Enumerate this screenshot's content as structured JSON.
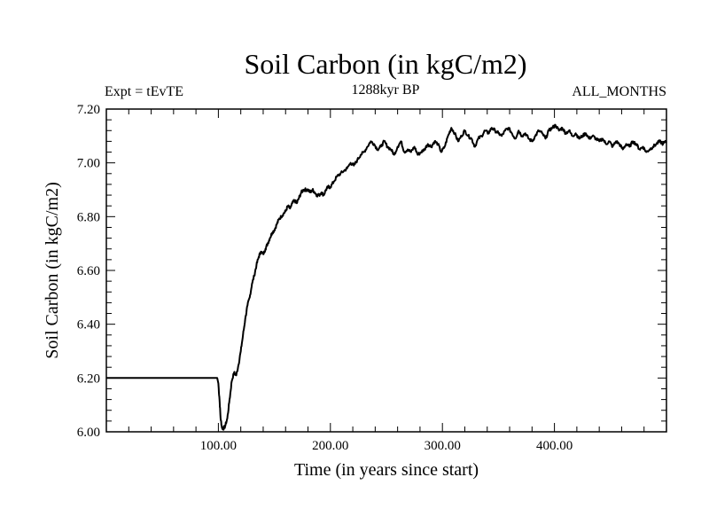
{
  "chart_data": {
    "type": "line",
    "title": "Soil Carbon (in kgC/m2)",
    "subtitle_left": "Expt = tEvTE",
    "subtitle_center": "1288kyr BP",
    "subtitle_right": "ALL_MONTHS",
    "xlabel": "Time (in years since start)",
    "ylabel": "Soil Carbon (in kgC/m2)",
    "xlim": [
      0,
      500
    ],
    "ylim": [
      6.0,
      7.2
    ],
    "x_ticks": [
      100,
      200,
      300,
      400
    ],
    "x_tick_labels": [
      "100.00",
      "200.00",
      "300.00",
      "400.00"
    ],
    "y_ticks": [
      6.0,
      6.2,
      6.4,
      6.6,
      6.8,
      7.0,
      7.2
    ],
    "y_tick_labels": [
      "6.00",
      "6.20",
      "6.40",
      "6.60",
      "6.80",
      "7.00",
      "7.20"
    ],
    "series": [
      {
        "name": "Soil Carbon",
        "x": [
          0,
          99,
          100,
          101,
          102,
          103,
          104,
          106,
          108,
          110,
          112,
          114,
          116,
          118,
          120,
          122,
          124,
          126,
          128,
          130,
          132,
          134,
          136,
          138,
          140,
          142,
          144,
          146,
          148,
          150,
          152,
          154,
          156,
          158,
          160,
          162,
          164,
          166,
          168,
          170,
          172,
          174,
          176,
          178,
          180,
          182,
          184,
          186,
          188,
          190,
          192,
          194,
          196,
          198,
          200,
          203,
          206,
          209,
          212,
          215,
          218,
          221,
          224,
          227,
          230,
          233,
          236,
          239,
          242,
          245,
          248,
          251,
          254,
          257,
          260,
          263,
          266,
          269,
          272,
          275,
          278,
          281,
          284,
          287,
          290,
          293,
          296,
          299,
          302,
          305,
          308,
          311,
          314,
          317,
          320,
          323,
          326,
          329,
          332,
          335,
          338,
          341,
          344,
          347,
          350,
          353,
          356,
          359,
          362,
          365,
          368,
          371,
          374,
          377,
          380,
          383,
          386,
          389,
          392,
          395,
          398,
          401,
          404,
          407,
          410,
          413,
          416,
          419,
          422,
          425,
          428,
          431,
          434,
          437,
          440,
          443,
          446,
          449,
          452,
          455,
          458,
          461,
          464,
          467,
          470,
          473,
          476,
          479,
          482,
          485,
          488,
          491,
          494,
          497,
          500
        ],
        "values": [
          6.2,
          6.2,
          6.18,
          6.12,
          6.05,
          6.02,
          6.01,
          6.02,
          6.05,
          6.12,
          6.19,
          6.22,
          6.21,
          6.25,
          6.3,
          6.36,
          6.42,
          6.47,
          6.5,
          6.55,
          6.58,
          6.62,
          6.65,
          6.67,
          6.66,
          6.68,
          6.7,
          6.72,
          6.74,
          6.75,
          6.77,
          6.79,
          6.8,
          6.81,
          6.82,
          6.84,
          6.83,
          6.85,
          6.86,
          6.85,
          6.87,
          6.89,
          6.9,
          6.9,
          6.9,
          6.89,
          6.9,
          6.89,
          6.88,
          6.88,
          6.89,
          6.88,
          6.9,
          6.91,
          6.91,
          6.93,
          6.95,
          6.96,
          6.97,
          6.98,
          7.0,
          6.99,
          7.01,
          7.03,
          7.04,
          7.06,
          7.08,
          7.07,
          7.05,
          7.06,
          7.08,
          7.06,
          7.05,
          7.03,
          7.06,
          7.08,
          7.04,
          7.05,
          7.04,
          7.06,
          7.03,
          7.04,
          7.05,
          7.07,
          7.06,
          7.08,
          7.07,
          7.04,
          7.06,
          7.1,
          7.13,
          7.11,
          7.08,
          7.1,
          7.12,
          7.1,
          7.09,
          7.06,
          7.09,
          7.1,
          7.12,
          7.11,
          7.13,
          7.12,
          7.11,
          7.1,
          7.12,
          7.13,
          7.11,
          7.09,
          7.12,
          7.1,
          7.11,
          7.09,
          7.08,
          7.1,
          7.12,
          7.11,
          7.09,
          7.12,
          7.13,
          7.14,
          7.12,
          7.13,
          7.11,
          7.12,
          7.1,
          7.11,
          7.09,
          7.1,
          7.11,
          7.09,
          7.1,
          7.09,
          7.08,
          7.09,
          7.07,
          7.08,
          7.06,
          7.08,
          7.07,
          7.05,
          7.07,
          7.06,
          7.08,
          7.07,
          7.05,
          7.06,
          7.04,
          7.05,
          7.06,
          7.07,
          7.08,
          7.07,
          7.08
        ]
      }
    ]
  }
}
